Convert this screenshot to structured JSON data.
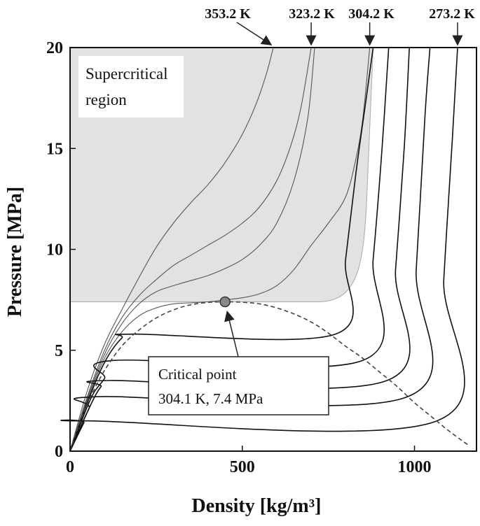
{
  "chart_data": {
    "type": "line",
    "xlabel": "Density [kg/m³]",
    "ylabel": "Pressure [MPa]",
    "xlim": [
      0,
      1180
    ],
    "ylim": [
      0,
      20
    ],
    "xticks": [
      0,
      500,
      1000
    ],
    "yticks": [
      0,
      5,
      10,
      15,
      20
    ],
    "grid": false,
    "supercritical_region": {
      "label": "Supercritical region",
      "x_range": [
        0,
        880
      ],
      "p_min": 7.4,
      "p_max": 20
    },
    "critical_point": {
      "x": 450,
      "y": 7.4,
      "label_line1": "Critical point",
      "label_line2": "304.1 K, 7.4 MPa"
    },
    "saturation_dome": [
      [
        0,
        0
      ],
      [
        30,
        1.5
      ],
      [
        60,
        2.7
      ],
      [
        100,
        4
      ],
      [
        150,
        5.2
      ],
      [
        200,
        6
      ],
      [
        250,
        6.6
      ],
      [
        300,
        7
      ],
      [
        350,
        7.25
      ],
      [
        400,
        7.37
      ],
      [
        450,
        7.4
      ],
      [
        500,
        7.38
      ],
      [
        550,
        7.3
      ],
      [
        600,
        7.1
      ],
      [
        650,
        6.8
      ],
      [
        700,
        6.4
      ],
      [
        750,
        5.85
      ],
      [
        800,
        5.2
      ],
      [
        850,
        4.6
      ],
      [
        900,
        3.9
      ],
      [
        950,
        3.2
      ],
      [
        1000,
        2.4
      ],
      [
        1050,
        1.7
      ],
      [
        1100,
        1.0
      ],
      [
        1160,
        0.25
      ]
    ],
    "isotherm_labels": [
      "353.2 K",
      "323.2 K",
      "304.2 K",
      "273.2 K"
    ],
    "series": [
      {
        "points": [
          [
            0,
            0
          ],
          [
            50,
            3
          ],
          [
            100,
            5.3
          ],
          [
            150,
            7
          ],
          [
            200,
            8.6
          ],
          [
            250,
            10.1
          ],
          [
            300,
            11.3
          ],
          [
            350,
            12.3
          ],
          [
            400,
            13.2
          ],
          [
            450,
            14.3
          ],
          [
            500,
            15.7
          ],
          [
            540,
            17.2
          ],
          [
            570,
            18.7
          ],
          [
            590,
            20
          ]
        ]
      },
      {
        "points": [
          [
            0,
            0
          ],
          [
            50,
            2.7
          ],
          [
            100,
            5
          ],
          [
            150,
            6.6
          ],
          [
            200,
            7.7
          ],
          [
            250,
            8.5
          ],
          [
            300,
            9.2
          ],
          [
            350,
            9.7
          ],
          [
            400,
            10.2
          ],
          [
            450,
            10.7
          ],
          [
            500,
            11.3
          ],
          [
            550,
            12.1
          ],
          [
            600,
            13.4
          ],
          [
            640,
            15.1
          ],
          [
            670,
            17
          ],
          [
            700,
            20
          ]
        ]
      },
      {
        "points": [
          [
            0,
            0
          ],
          [
            50,
            2.6
          ],
          [
            100,
            4.8
          ],
          [
            150,
            6.3
          ],
          [
            200,
            7.3
          ],
          [
            250,
            7.9
          ],
          [
            300,
            8.2
          ],
          [
            350,
            8.45
          ],
          [
            400,
            8.7
          ],
          [
            450,
            9.05
          ],
          [
            500,
            9.5
          ],
          [
            550,
            10.2
          ],
          [
            600,
            11.3
          ],
          [
            650,
            13.4
          ],
          [
            690,
            16.5
          ],
          [
            710,
            20
          ]
        ]
      },
      {
        "points": [
          [
            0,
            0
          ],
          [
            50,
            2.5
          ],
          [
            100,
            4.6
          ],
          [
            150,
            5.9
          ],
          [
            200,
            6.7
          ],
          [
            250,
            7.1
          ],
          [
            300,
            7.3
          ],
          [
            350,
            7.35
          ],
          [
            400,
            7.4
          ],
          [
            450,
            7.5
          ],
          [
            500,
            7.6
          ],
          [
            550,
            7.8
          ],
          [
            600,
            8.2
          ],
          [
            650,
            9
          ],
          [
            700,
            10.2
          ],
          [
            750,
            11.3
          ],
          [
            800,
            12.6
          ],
          [
            830,
            14.5
          ],
          [
            850,
            16.5
          ],
          [
            870,
            20
          ]
        ]
      },
      {
        "points": [
          [
            0,
            0
          ],
          [
            50,
            2.4
          ],
          [
            100,
            4.4
          ],
          [
            150,
            5.6
          ],
          [
            185,
            5.8
          ],
          [
            770,
            5.8
          ],
          [
            800,
            9.5
          ],
          [
            830,
            13.8
          ],
          [
            860,
            17.5
          ],
          [
            880,
            20
          ]
        ]
      },
      {
        "points": [
          [
            0,
            0
          ],
          [
            60,
            2.6
          ],
          [
            100,
            3.6
          ],
          [
            130,
            4.5
          ],
          [
            850,
            4.5
          ],
          [
            880,
            9.5
          ],
          [
            905,
            14.8
          ],
          [
            925,
            20
          ]
        ]
      },
      {
        "points": [
          [
            0,
            0
          ],
          [
            60,
            2.3
          ],
          [
            90,
            3.2
          ],
          [
            115,
            3.5
          ],
          [
            920,
            3.5
          ],
          [
            945,
            9
          ],
          [
            970,
            15
          ],
          [
            985,
            20
          ]
        ]
      },
      {
        "points": [
          [
            0,
            0
          ],
          [
            55,
            2.1
          ],
          [
            85,
            2.7
          ],
          [
            980,
            2.7
          ],
          [
            1005,
            9
          ],
          [
            1030,
            16.5
          ],
          [
            1045,
            20
          ]
        ]
      },
      {
        "points": [
          [
            0,
            0
          ],
          [
            40,
            1.4
          ],
          [
            50,
            1.5
          ],
          [
            1065,
            1.5
          ],
          [
            1085,
            8.5
          ],
          [
            1110,
            15.5
          ],
          [
            1125,
            20
          ]
        ]
      }
    ]
  }
}
